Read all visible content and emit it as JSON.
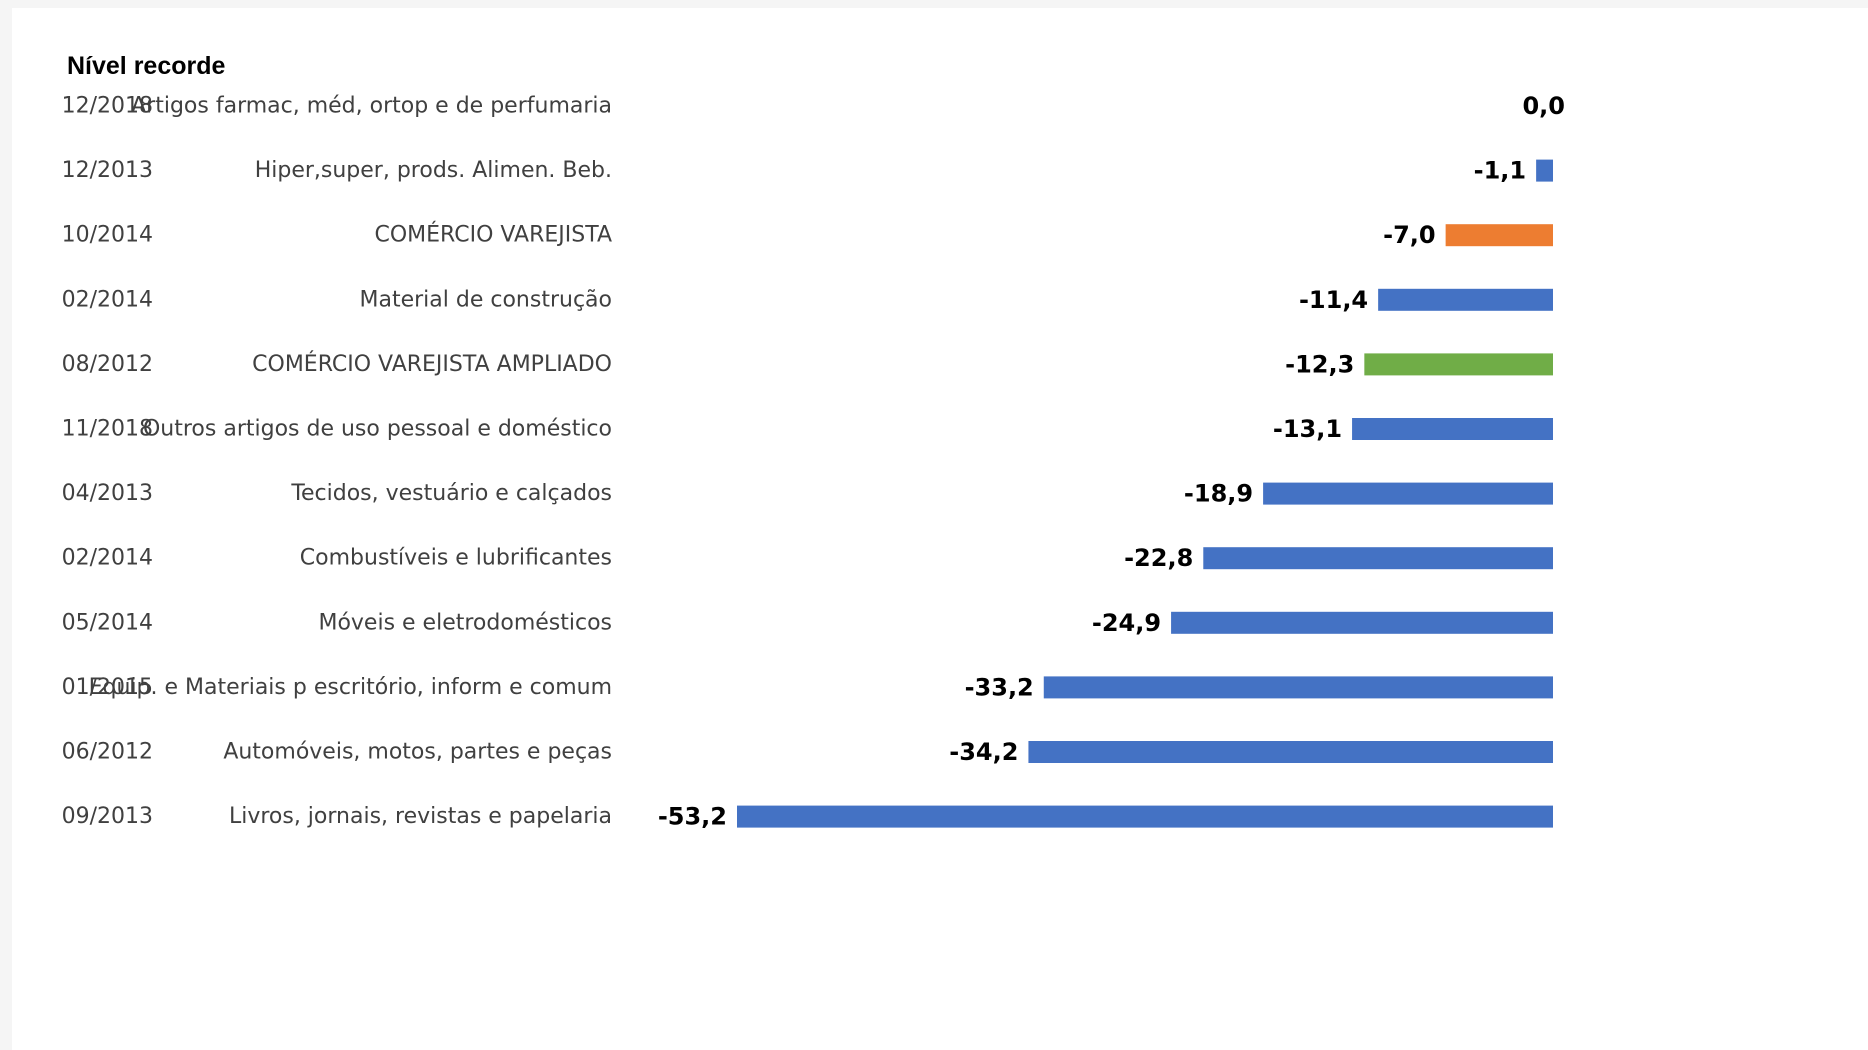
{
  "header_label": "Nível recorde",
  "colors": {
    "default_bar": "#4472c4",
    "comercio_varejista": "#ed7d31",
    "comercio_varejista_ampliado": "#70ad47"
  },
  "chart_data": {
    "type": "bar",
    "orientation": "horizontal",
    "title": "",
    "xlabel": "",
    "ylabel": "",
    "xlim": [
      -53.2,
      0
    ],
    "grid": false,
    "legend": "none",
    "rows": [
      {
        "date": "12/2018",
        "category": "Artigos farmac, méd, ortop e de perfumaria",
        "value": 0.0,
        "label": "0,0",
        "color": "#4472c4"
      },
      {
        "date": "12/2013",
        "category": "Hiper,super, prods. Alimen. Beb.",
        "value": -1.1,
        "label": "-1,1",
        "color": "#4472c4"
      },
      {
        "date": "10/2014",
        "category": "COMÉRCIO VAREJISTA",
        "value": -7.0,
        "label": "-7,0",
        "color": "#ed7d31"
      },
      {
        "date": "02/2014",
        "category": "Material de construção",
        "value": -11.4,
        "label": "-11,4",
        "color": "#4472c4"
      },
      {
        "date": "08/2012",
        "category": "COMÉRCIO VAREJISTA AMPLIADO",
        "value": -12.3,
        "label": "-12,3",
        "color": "#70ad47"
      },
      {
        "date": "11/2018",
        "category": "Outros artigos de uso pessoal e doméstico",
        "value": -13.1,
        "label": "-13,1",
        "color": "#4472c4"
      },
      {
        "date": "04/2013",
        "category": "Tecidos, vestuário e calçados",
        "value": -18.9,
        "label": "-18,9",
        "color": "#4472c4"
      },
      {
        "date": "02/2014",
        "category": "Combustíveis e lubrificantes",
        "value": -22.8,
        "label": "-22,8",
        "color": "#4472c4"
      },
      {
        "date": "05/2014",
        "category": "Móveis e eletrodomésticos",
        "value": -24.9,
        "label": "-24,9",
        "color": "#4472c4"
      },
      {
        "date": "01/2015",
        "category": "Equip. e Materiais p escritório, inform e comum",
        "value": -33.2,
        "label": "-33,2",
        "color": "#4472c4"
      },
      {
        "date": "06/2012",
        "category": "Automóveis, motos, partes e peças",
        "value": -34.2,
        "label": "-34,2",
        "color": "#4472c4"
      },
      {
        "date": "09/2013",
        "category": "Livros, jornais, revistas e papelaria",
        "value": -53.2,
        "label": "-53,2",
        "color": "#4472c4"
      }
    ]
  }
}
